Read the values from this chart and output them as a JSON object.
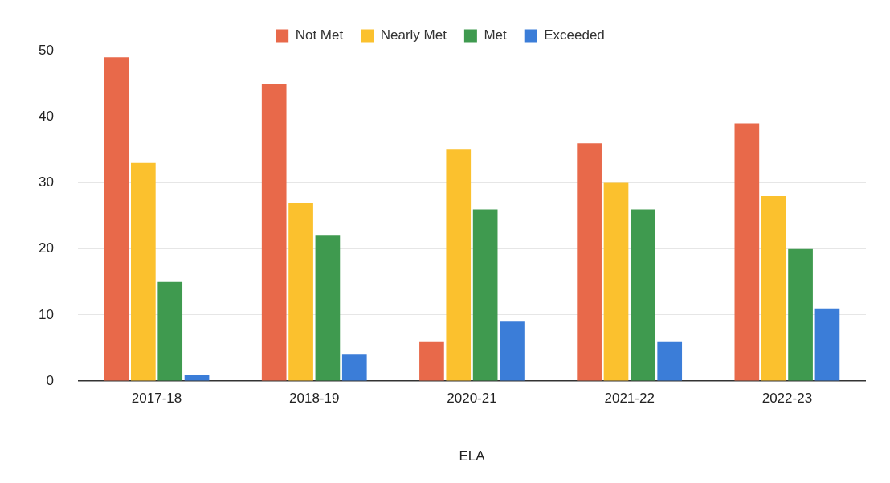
{
  "chart_data": {
    "type": "bar",
    "xlabel": "ELA",
    "categories": [
      "2017-18",
      "2018-19",
      "2020-21",
      "2021-22",
      "2022-23"
    ],
    "series": [
      {
        "name": "Not Met",
        "color": "#e8694a",
        "values": [
          49,
          45,
          6,
          36,
          39
        ]
      },
      {
        "name": "Nearly Met",
        "color": "#fbc12e",
        "values": [
          33,
          27,
          35,
          30,
          28
        ]
      },
      {
        "name": "Met",
        "color": "#3f9a4f",
        "values": [
          15,
          22,
          26,
          26,
          20
        ]
      },
      {
        "name": "Exceeded",
        "color": "#3b7dd8",
        "values": [
          1,
          4,
          9,
          6,
          11
        ]
      }
    ],
    "ylim": [
      0,
      50
    ],
    "yticks": [
      0,
      10,
      20,
      30,
      40,
      50
    ],
    "grid": "y",
    "legend": "top"
  }
}
